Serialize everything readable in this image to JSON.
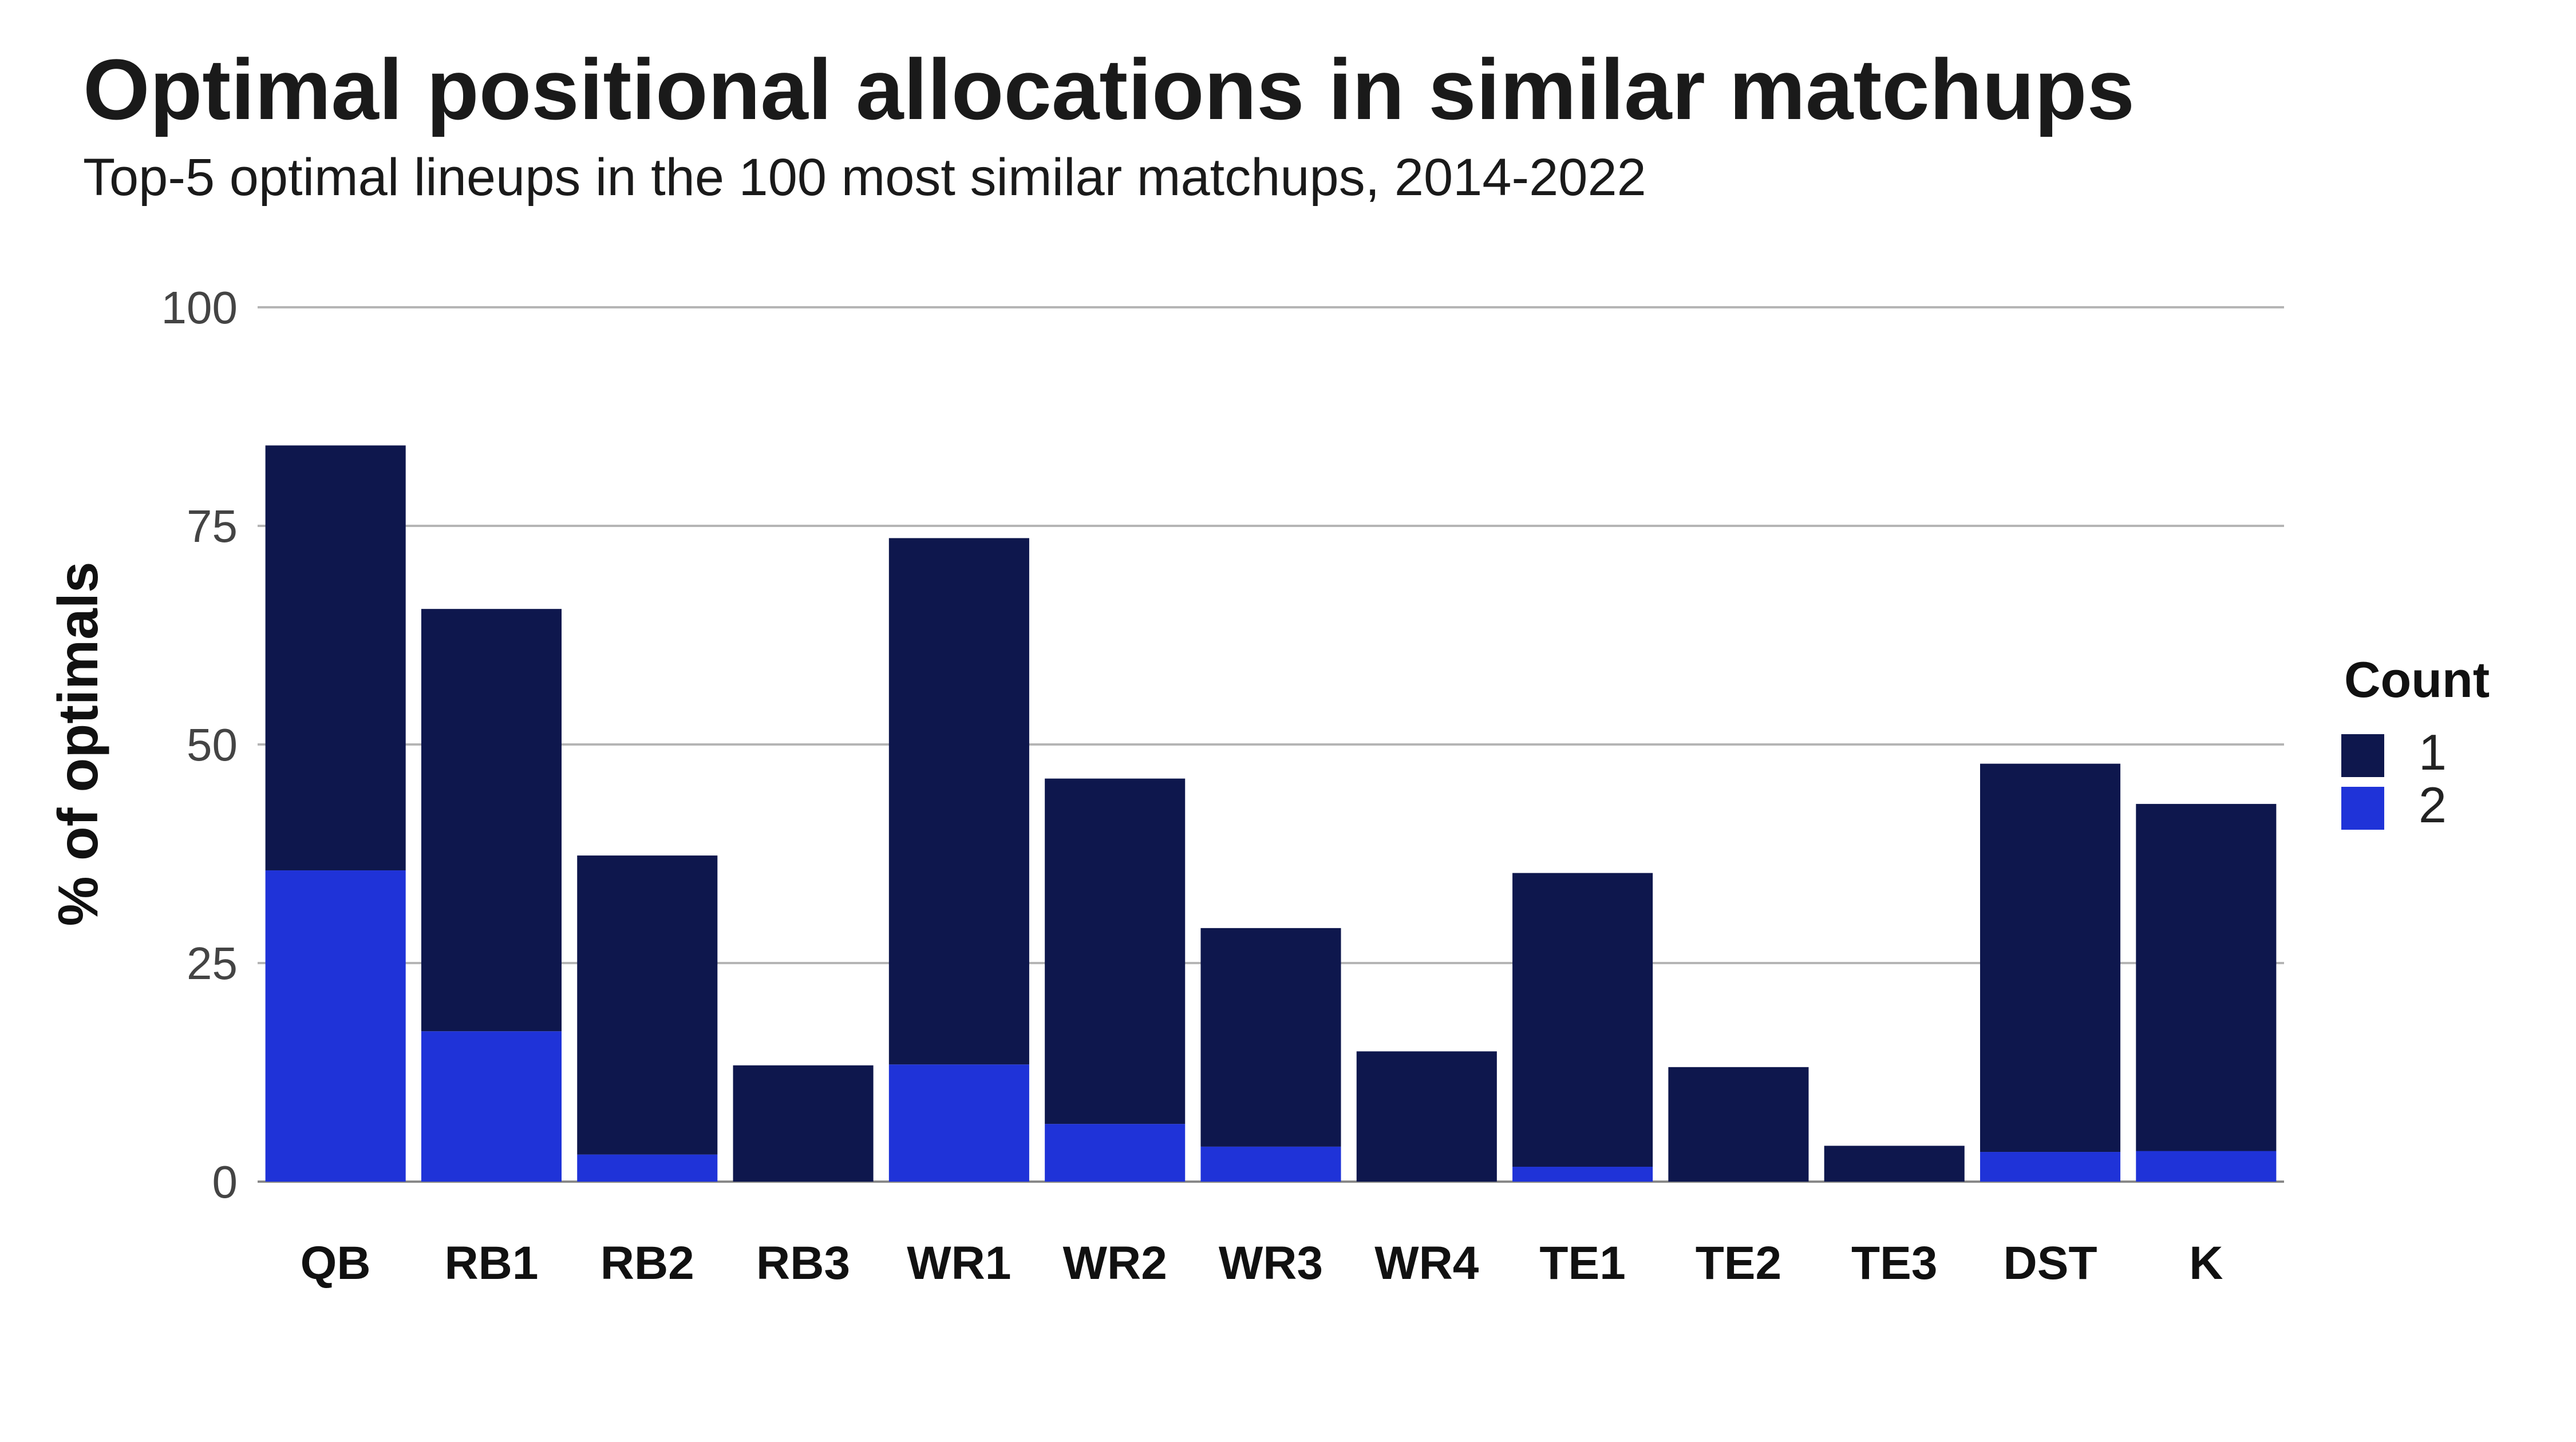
{
  "title": "Optimal positional allocations in similar matchups",
  "subtitle": "Top-5 optimal lineups in the 100 most similar matchups, 2014-2022",
  "colors": {
    "count_1": "#0e174d",
    "count_2": "#1f33d8"
  },
  "chart_data": {
    "type": "bar",
    "stacked": true,
    "categories": [
      "QB",
      "RB1",
      "RB2",
      "RB3",
      "WR1",
      "WR2",
      "WR3",
      "WR4",
      "TE1",
      "TE2",
      "TE3",
      "DST",
      "K"
    ],
    "series": [
      {
        "name": "1",
        "values": [
          48.6,
          48.3,
          34.2,
          13.3,
          60.2,
          39.5,
          25.0,
          14.9,
          33.6,
          13.1,
          4.1,
          44.4,
          39.7
        ]
      },
      {
        "name": "2",
        "values": [
          35.6,
          17.2,
          3.1,
          0.0,
          13.4,
          6.6,
          4.0,
          0.0,
          1.7,
          0.0,
          0.0,
          3.4,
          3.5
        ]
      }
    ],
    "ylabel": "% of optimals",
    "xlabel": "",
    "ylim": [
      0,
      100
    ],
    "yticks": [
      "0",
      "25",
      "50",
      "75",
      "100"
    ],
    "grid": true,
    "legend": {
      "title": "Count",
      "placement": "right"
    }
  }
}
